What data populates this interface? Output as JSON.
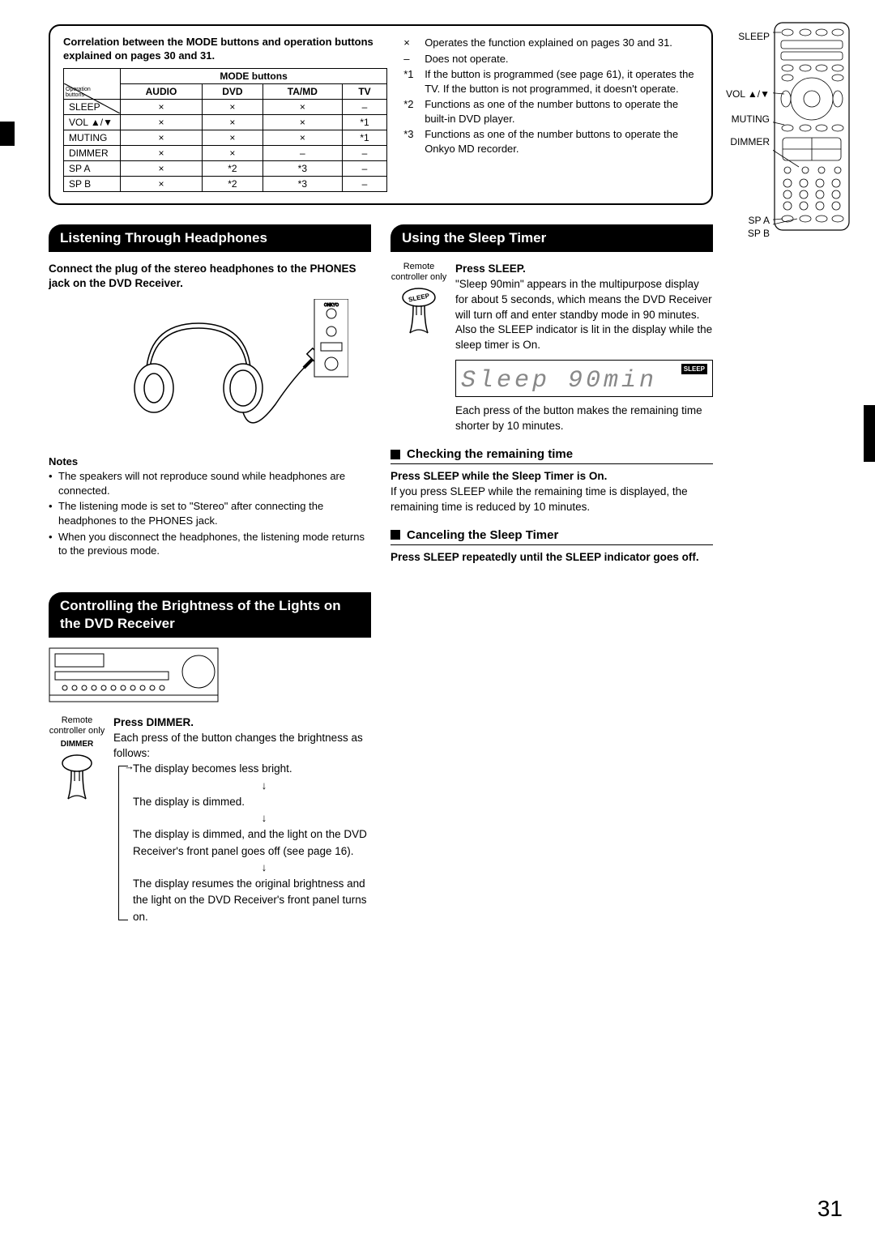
{
  "page_number": "31",
  "top_box": {
    "heading": "Correlation between the MODE buttons and operation buttons explained on pages 30 and 31.",
    "table": {
      "header_group": "MODE buttons",
      "corner_top": "Operation",
      "corner_bottom": "buttons",
      "columns": [
        "AUDIO",
        "DVD",
        "TA/MD",
        "TV"
      ],
      "rows": [
        {
          "label": "SLEEP",
          "cells": [
            "×",
            "×",
            "×",
            "–"
          ]
        },
        {
          "label": "VOL ▲/▼",
          "cells": [
            "×",
            "×",
            "×",
            "*1"
          ]
        },
        {
          "label": "MUTING",
          "cells": [
            "×",
            "×",
            "×",
            "*1"
          ]
        },
        {
          "label": "DIMMER",
          "cells": [
            "×",
            "×",
            "–",
            "–"
          ]
        },
        {
          "label": "SP A",
          "cells": [
            "×",
            "*2",
            "*3",
            "–"
          ]
        },
        {
          "label": "SP B",
          "cells": [
            "×",
            "*2",
            "*3",
            "–"
          ]
        }
      ]
    },
    "legend": [
      {
        "sym": "×",
        "text": "Operates the function explained on pages 30 and 31."
      },
      {
        "sym": "–",
        "text": "Does not operate."
      },
      {
        "sym": "*1",
        "text": "If the button is programmed (see page 61), it operates the TV.\nIf the button is not programmed, it doesn't operate."
      },
      {
        "sym": "*2",
        "text": "Functions as one of the number buttons to operate the built-in DVD player."
      },
      {
        "sym": "*3",
        "text": "Functions as one of the number buttons to operate the Onkyo MD recorder."
      }
    ]
  },
  "remote_labels": [
    "SLEEP",
    "VOL ▲/▼",
    "MUTING",
    "DIMMER",
    "SP A",
    "SP B"
  ],
  "headphones": {
    "title": "Listening Through Headphones",
    "intro": "Connect the plug of the stereo headphones to the PHONES jack on the DVD Receiver.",
    "notes_head": "Notes",
    "notes": [
      "The speakers will not reproduce sound while headphones are connected.",
      "The listening mode is set to \"Stereo\" after connecting the headphones to the PHONES jack.",
      "When you disconnect the headphones, the listening mode returns to the previous mode."
    ]
  },
  "sleep": {
    "title": "Using the Sleep Timer",
    "remote_only": "Remote controller only",
    "step_title": "Press SLEEP.",
    "step_body": "\"Sleep 90min\" appears in the multipurpose display for about 5 seconds, which means the DVD Receiver will turn off and enter standby mode in 90 minutes. Also the SLEEP indicator is lit in the display while the sleep timer is On.",
    "lcd": "Sleep 90min",
    "lcd_badge": "SLEEP",
    "after_lcd": "Each press of the button makes the remaining time shorter by 10 minutes.",
    "check": {
      "title": "Checking the remaining time",
      "bold": "Press SLEEP while the Sleep Timer is On.",
      "body": "If you press SLEEP while the remaining time is displayed, the remaining time is reduced by 10 minutes."
    },
    "cancel": {
      "title": "Canceling the Sleep Timer",
      "bold": "Press SLEEP repeatedly until the SLEEP indicator goes off."
    }
  },
  "brightness": {
    "title": "Controlling the Brightness of the Lights on the DVD Receiver",
    "remote_only": "Remote controller only",
    "dimmer_label": "DIMMER",
    "step_title": "Press DIMMER.",
    "step_intro": "Each press of the button changes the brightness as follows:",
    "flow": [
      "The display becomes less bright.",
      "The display is dimmed.",
      "The display is dimmed, and the light on the DVD Receiver's front panel goes off (see page 16).",
      "The display resumes the original brightness and the light on the DVD Receiver's front panel turns on."
    ]
  },
  "colors": {
    "black": "#000000",
    "white": "#ffffff",
    "lcd_grey": "#888888"
  }
}
